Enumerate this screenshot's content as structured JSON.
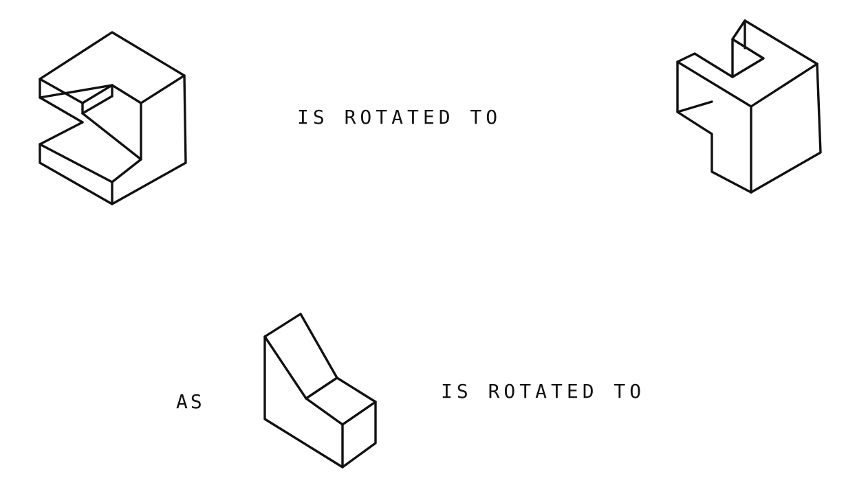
{
  "statement": {
    "top_text": "IS ROTATED TO",
    "as_text": "AS",
    "bottom_text": "IS ROTATED TO"
  },
  "figures": [
    {
      "name": "source-block-c-shape"
    },
    {
      "name": "rotated-block-c-shape"
    },
    {
      "name": "wedge-block"
    }
  ],
  "colors": {
    "ink": "#111111",
    "background": "#ffffff"
  }
}
